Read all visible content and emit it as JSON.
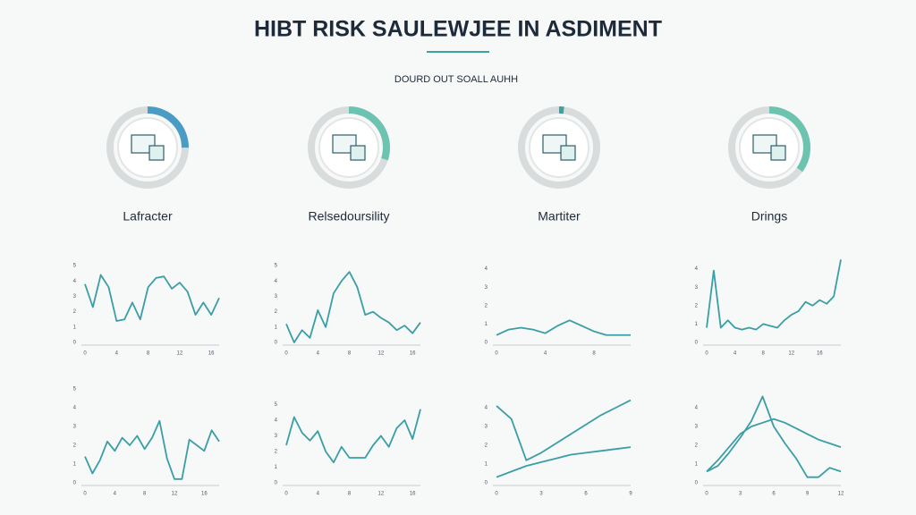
{
  "header": {
    "title": "HIBT RISK SAULEWJEE IN ASDIMENT",
    "subtitle": "DOURD OUT SOALL AUHH"
  },
  "panels": [
    {
      "label": "Lafracter",
      "progress": 25,
      "color": "#4a9cc4"
    },
    {
      "label": "Relsedoursility",
      "progress": 30,
      "color": "#6cc3b0"
    },
    {
      "label": "Martiter",
      "progress": 2,
      "color": "#3aa39f"
    },
    {
      "label": "Drings",
      "progress": 35,
      "color": "#6cc3b0"
    }
  ],
  "chart_data": [
    {
      "type": "line",
      "x": [
        0,
        1,
        2,
        3,
        4,
        5,
        6,
        7,
        8,
        9,
        10,
        11,
        12,
        13,
        14,
        15,
        16,
        17
      ],
      "ylim": [
        0,
        6
      ],
      "yticks": [
        0,
        1,
        2,
        3,
        4,
        5
      ],
      "xticks": [
        0,
        4,
        8,
        12,
        16
      ],
      "series": [
        {
          "color": "#3a9ea5",
          "values": [
            3.8,
            2.3,
            4.4,
            3.6,
            1.4,
            1.5,
            2.6,
            1.5,
            3.6,
            4.2,
            4.3,
            3.5,
            3.9,
            3.3,
            1.8,
            2.6,
            1.8,
            2.9
          ]
        }
      ]
    },
    {
      "type": "line",
      "x": [
        0,
        1,
        2,
        3,
        4,
        5,
        6,
        7,
        8,
        9,
        10,
        11,
        12,
        13,
        14,
        15,
        16,
        17
      ],
      "ylim": [
        0,
        6
      ],
      "yticks": [
        0,
        1,
        2,
        3,
        4,
        5
      ],
      "xticks": [
        0,
        4,
        8,
        12,
        16
      ],
      "series": [
        {
          "color": "#3a9ea5",
          "values": [
            1.2,
            0.0,
            0.8,
            0.3,
            2.1,
            1.0,
            3.2,
            4.0,
            4.6,
            3.6,
            1.8,
            2.0,
            1.6,
            1.3,
            0.8,
            1.1,
            0.6,
            1.3
          ]
        }
      ]
    },
    {
      "type": "line",
      "x": [
        0,
        1,
        2,
        3,
        4,
        5,
        6,
        7,
        8,
        9,
        10,
        11
      ],
      "ylim": [
        0,
        5
      ],
      "yticks": [
        0,
        1,
        2,
        3,
        4
      ],
      "xticks": [
        0,
        4,
        8
      ],
      "series": [
        {
          "color": "#3a9ea5",
          "values": [
            0.4,
            0.7,
            0.8,
            0.7,
            0.5,
            0.9,
            1.2,
            0.9,
            0.6,
            0.4,
            0.4,
            0.4
          ]
        }
      ]
    },
    {
      "type": "line",
      "x": [
        0,
        1,
        2,
        3,
        4,
        5,
        6,
        7,
        8,
        9,
        10,
        11,
        12,
        13,
        14,
        15,
        16,
        17,
        18,
        19
      ],
      "ylim": [
        0,
        5
      ],
      "yticks": [
        0,
        1,
        2,
        3,
        4
      ],
      "xticks": [
        0,
        4,
        8,
        12,
        16
      ],
      "series": [
        {
          "color": "#3a9ea5",
          "values": [
            0.8,
            3.9,
            0.8,
            1.2,
            0.8,
            0.7,
            0.8,
            0.7,
            1.0,
            0.9,
            0.8,
            1.2,
            1.5,
            1.7,
            2.2,
            2.0,
            2.3,
            2.1,
            2.5,
            4.5
          ]
        }
      ]
    },
    {
      "type": "line",
      "x": [
        0,
        1,
        2,
        3,
        4,
        5,
        6,
        7,
        8,
        9,
        10,
        11,
        12,
        13,
        14,
        15,
        16,
        17,
        18
      ],
      "ylim": [
        0,
        5
      ],
      "yticks": [
        0,
        1,
        2,
        3,
        4,
        5
      ],
      "xticks": [
        0,
        4,
        8,
        12,
        16
      ],
      "series": [
        {
          "color": "#3a9ea5",
          "values": [
            1.4,
            0.5,
            1.2,
            2.2,
            1.7,
            2.4,
            2.0,
            2.5,
            1.8,
            2.4,
            3.3,
            1.3,
            0.2,
            0.2,
            2.3,
            2.0,
            1.7,
            2.8,
            2.2
          ]
        }
      ]
    },
    {
      "type": "line",
      "x": [
        0,
        1,
        2,
        3,
        4,
        5,
        6,
        7,
        8,
        9,
        10,
        11,
        12,
        13,
        14,
        15,
        16,
        17
      ],
      "ylim": [
        0,
        6
      ],
      "yticks": [
        0,
        1,
        2,
        3,
        4,
        5
      ],
      "xticks": [
        0,
        4,
        8,
        12,
        16
      ],
      "series": [
        {
          "color": "#3a9ea5",
          "values": [
            2.4,
            4.2,
            3.2,
            2.7,
            3.3,
            2.0,
            1.3,
            2.3,
            1.6,
            1.6,
            1.6,
            2.4,
            3.0,
            2.3,
            3.5,
            4.0,
            2.8,
            4.7
          ]
        }
      ]
    },
    {
      "type": "line",
      "x": [
        0,
        1,
        2,
        3,
        4,
        5,
        6,
        7,
        8,
        9
      ],
      "ylim": [
        0,
        5
      ],
      "yticks": [
        0,
        1,
        2,
        3,
        4
      ],
      "xticks": [
        0,
        3,
        6,
        9
      ],
      "series": [
        {
          "color": "#3a9ea5",
          "values": [
            4.1,
            3.4,
            1.2,
            1.6,
            2.1,
            2.6,
            3.1,
            3.6,
            4.0,
            4.4
          ]
        },
        {
          "color": "#3a9ea5",
          "values": [
            0.3,
            0.6,
            0.9,
            1.1,
            1.3,
            1.5,
            1.6,
            1.7,
            1.8,
            1.9
          ]
        }
      ]
    },
    {
      "type": "line",
      "x": [
        0,
        1,
        2,
        3,
        4,
        5,
        6,
        7,
        8,
        9,
        10,
        11,
        12
      ],
      "ylim": [
        0,
        5
      ],
      "yticks": [
        0,
        1,
        2,
        3,
        4
      ],
      "xticks": [
        0,
        3,
        6,
        9,
        12
      ],
      "series": [
        {
          "color": "#3a9ea5",
          "values": [
            0.6,
            0.9,
            1.6,
            2.4,
            3.3,
            4.6,
            3.0,
            2.1,
            1.3,
            0.3,
            0.3,
            0.8,
            0.6
          ]
        },
        {
          "color": "#3a9ea5",
          "values": [
            0.6,
            1.2,
            1.9,
            2.6,
            3.0,
            3.2,
            3.4,
            3.2,
            2.9,
            2.6,
            2.3,
            2.1,
            1.9
          ]
        }
      ]
    }
  ]
}
